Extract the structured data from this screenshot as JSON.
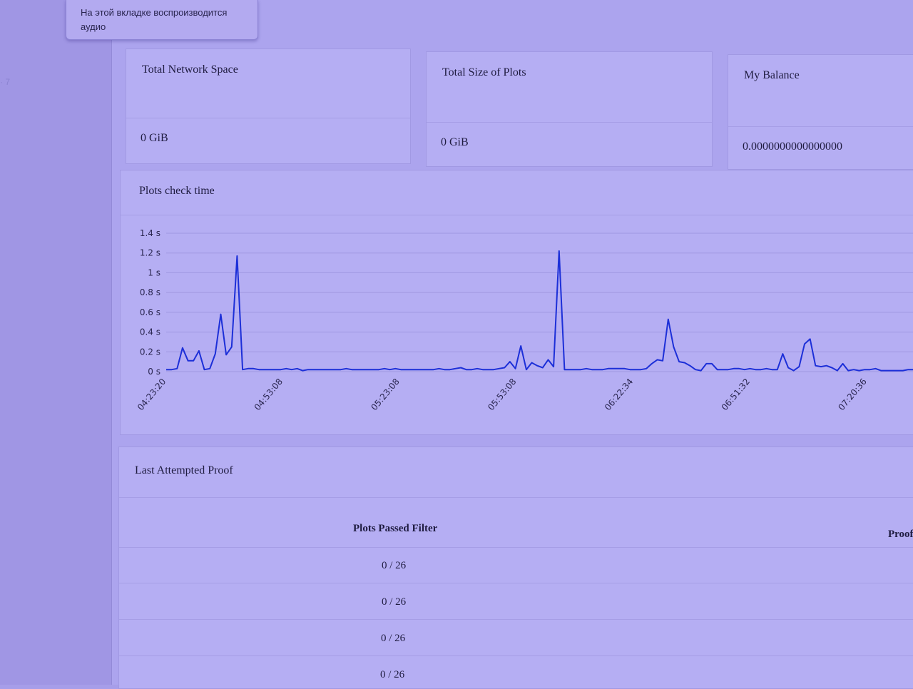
{
  "tooltip": {
    "line1": "На этой вкладке воспроизводится",
    "line2": "аудио"
  },
  "stats": {
    "network_space": {
      "label": "Total Network Space",
      "value": "0 GiB"
    },
    "plots_size": {
      "label": "Total Size of Plots",
      "value": "0 GiB"
    },
    "balance": {
      "label": "My Balance",
      "value": "0.0000000000000000"
    }
  },
  "chart_panel": {
    "title": "Plots check time"
  },
  "chart_data": {
    "type": "line",
    "title": "Plots check time",
    "xlabel": "",
    "ylabel": "",
    "y_unit": "s",
    "ylim": [
      0,
      1.4
    ],
    "y_ticks": [
      "0 s",
      "0.2 s",
      "0.4 s",
      "0.6 s",
      "0.8 s",
      "1 s",
      "1.2 s",
      "1.4 s"
    ],
    "x_tick_labels": [
      "04:23:20",
      "04:53:08",
      "05:23:08",
      "05:53:08",
      "06:22:34",
      "06:51:32",
      "07:20:36"
    ],
    "series_color": "#1c2fd8",
    "values": [
      0.02,
      0.02,
      0.03,
      0.24,
      0.11,
      0.11,
      0.21,
      0.02,
      0.03,
      0.18,
      0.58,
      0.17,
      0.25,
      1.17,
      0.02,
      0.03,
      0.03,
      0.02,
      0.02,
      0.02,
      0.02,
      0.02,
      0.03,
      0.02,
      0.03,
      0.01,
      0.02,
      0.02,
      0.02,
      0.02,
      0.02,
      0.02,
      0.02,
      0.03,
      0.02,
      0.02,
      0.02,
      0.02,
      0.02,
      0.02,
      0.03,
      0.02,
      0.03,
      0.02,
      0.02,
      0.02,
      0.02,
      0.02,
      0.02,
      0.02,
      0.03,
      0.02,
      0.02,
      0.03,
      0.04,
      0.02,
      0.02,
      0.03,
      0.02,
      0.02,
      0.02,
      0.03,
      0.04,
      0.1,
      0.03,
      0.26,
      0.02,
      0.09,
      0.06,
      0.04,
      0.12,
      0.05,
      1.22,
      0.02,
      0.02,
      0.02,
      0.02,
      0.03,
      0.02,
      0.02,
      0.02,
      0.03,
      0.03,
      0.03,
      0.03,
      0.02,
      0.02,
      0.02,
      0.03,
      0.08,
      0.12,
      0.11,
      0.53,
      0.25,
      0.1,
      0.09,
      0.06,
      0.02,
      0.01,
      0.08,
      0.08,
      0.02,
      0.02,
      0.02,
      0.03,
      0.03,
      0.02,
      0.03,
      0.02,
      0.02,
      0.03,
      0.02,
      0.02,
      0.18,
      0.04,
      0.01,
      0.05,
      0.28,
      0.33,
      0.06,
      0.05,
      0.06,
      0.04,
      0.01,
      0.08,
      0.01,
      0.02,
      0.01,
      0.02,
      0.02,
      0.03,
      0.01,
      0.01,
      0.01,
      0.01,
      0.01,
      0.02,
      0.02
    ]
  },
  "proof_panel": {
    "title": "Last Attempted Proof",
    "columns": [
      "Plots Passed Filter",
      "Proof"
    ],
    "rows": [
      "0 / 26",
      "0 / 26",
      "0 / 26",
      "0 / 26"
    ]
  }
}
